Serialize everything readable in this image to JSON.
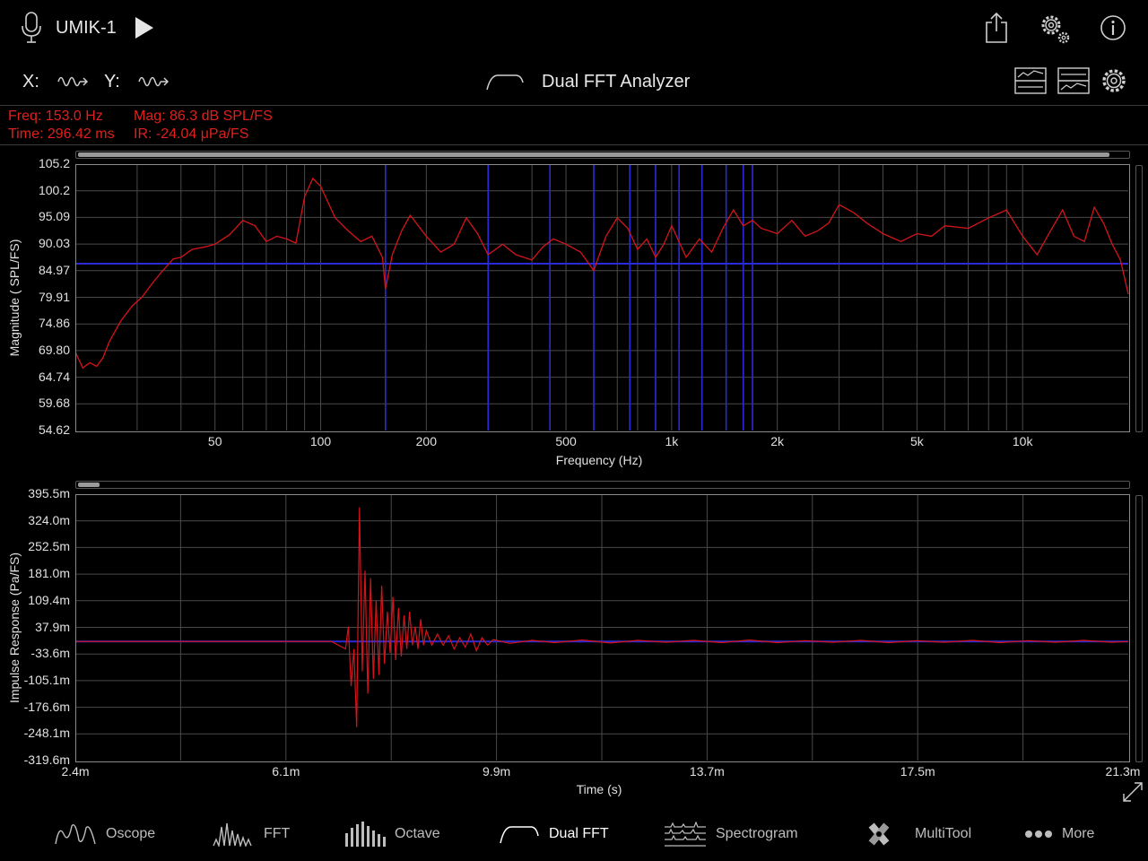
{
  "header": {
    "device": "UMIK-1",
    "x_label": "X:",
    "y_label": "Y:",
    "title": "Dual FFT Analyzer"
  },
  "readout": {
    "freq": "Freq: 153.0 Hz",
    "mag": "Mag: 86.3 dB SPL/FS",
    "time": "Time: 296.42 ms",
    "ir": "IR: -24.04 μPa/FS"
  },
  "fft_plot": {
    "ylabel": "Magnitude ( SPL/FS)",
    "xlabel": "Frequency (Hz)",
    "yticks": [
      "105.2",
      "100.2",
      "95.09",
      "90.03",
      "84.97",
      "79.91",
      "74.86",
      "69.80",
      "64.74",
      "59.68",
      "54.62"
    ],
    "xticks": [
      "50",
      "100",
      "200",
      "500",
      "1k",
      "2k",
      "5k",
      "10k"
    ],
    "xtick_values": [
      50,
      100,
      200,
      500,
      1000,
      2000,
      5000,
      10000
    ]
  },
  "ir_plot": {
    "ylabel": "Impulse Response (Pa/FS)",
    "xlabel": "Time (s)",
    "yticks": [
      "395.5m",
      "324.0m",
      "252.5m",
      "181.0m",
      "109.4m",
      "37.9m",
      "-33.6m",
      "-105.1m",
      "-176.6m",
      "-248.1m",
      "-319.6m"
    ],
    "xticks": [
      "2.4m",
      "6.1m",
      "9.9m",
      "13.7m",
      "17.5m",
      "21.3m"
    ]
  },
  "tabs": [
    {
      "label": "Oscope",
      "icon": "oscope-icon"
    },
    {
      "label": "FFT",
      "icon": "fft-icon"
    },
    {
      "label": "Octave",
      "icon": "octave-icon"
    },
    {
      "label": "Dual FFT",
      "icon": "dual-fft-icon"
    },
    {
      "label": "Spectrogram",
      "icon": "spectrogram-icon"
    },
    {
      "label": "MultiTool",
      "icon": "multitool-icon"
    },
    {
      "label": "More",
      "icon": "more-icon"
    }
  ],
  "colors": {
    "trace": "#d4141a",
    "reference": "#2a2ad6",
    "readout": "#e0201c",
    "grid": "#4a4a4a"
  },
  "chart_data": [
    {
      "type": "line",
      "x_scale": "log",
      "xlim": [
        20,
        20000
      ],
      "ylim": [
        54.62,
        105.2
      ],
      "reference_level": 86.3,
      "marker_frequencies": [
        153,
        300,
        450,
        600,
        760,
        900,
        1050,
        1220,
        1430,
        1600,
        1700
      ],
      "series": [
        {
          "x": [
            20,
            21,
            22,
            23,
            24,
            25,
            27,
            29,
            31,
            33,
            35,
            38,
            40,
            43,
            47,
            50,
            55,
            60,
            65,
            70,
            75,
            80,
            85,
            90,
            95,
            100,
            110,
            120,
            130,
            140,
            150,
            153,
            160,
            170,
            180,
            200,
            220,
            240,
            260,
            280,
            300,
            330,
            360,
            400,
            430,
            460,
            500,
            550,
            600,
            650,
            700,
            750,
            800,
            850,
            900,
            950,
            1000,
            1100,
            1200,
            1300,
            1400,
            1500,
            1600,
            1700,
            1800,
            2000,
            2200,
            2400,
            2600,
            2800,
            3000,
            3300,
            3600,
            4000,
            4500,
            5000,
            5500,
            6000,
            7000,
            8000,
            9000,
            10000,
            11000,
            12000,
            13000,
            14000,
            15000,
            16000,
            17000,
            18000,
            19000,
            20000
          ],
          "y": [
            69.5,
            66.5,
            67.5,
            66.8,
            68.5,
            71.5,
            75.5,
            78.2,
            80.0,
            82.4,
            84.5,
            87.2,
            87.5,
            89.0,
            89.5,
            90.0,
            91.8,
            94.5,
            93.5,
            90.5,
            91.5,
            91.0,
            90.2,
            99.0,
            102.5,
            101.0,
            95.0,
            92.5,
            90.5,
            91.5,
            87.5,
            81.5,
            88.0,
            92.5,
            95.5,
            91.5,
            88.5,
            90.0,
            95.0,
            92.0,
            88.0,
            90.0,
            88.0,
            87.0,
            89.5,
            91.0,
            90.0,
            88.5,
            85.0,
            91.5,
            95.0,
            93.0,
            89.0,
            91.0,
            87.5,
            90.0,
            93.5,
            87.5,
            91.0,
            88.5,
            93.0,
            96.5,
            93.5,
            94.5,
            93.0,
            92.0,
            94.5,
            91.5,
            92.5,
            94.0,
            97.5,
            96.0,
            94.0,
            92.0,
            90.5,
            92.0,
            91.5,
            93.5,
            93.0,
            95.0,
            96.5,
            91.5,
            88.0,
            92.5,
            96.5,
            91.5,
            90.5,
            97.0,
            94.0,
            90.0,
            87.0,
            80.5
          ]
        }
      ]
    },
    {
      "type": "line",
      "xlim": [
        2.4,
        21.3
      ],
      "ylim": [
        -319.6,
        395.5
      ],
      "reference_level": 0,
      "x_unit": "ms",
      "y_unit": "mPa/FS",
      "series": [
        {
          "x": [
            2.4,
            6.5,
            7.0,
            7.25,
            7.3,
            7.35,
            7.4,
            7.45,
            7.5,
            7.55,
            7.6,
            7.65,
            7.7,
            7.75,
            7.8,
            7.85,
            7.9,
            7.95,
            8.0,
            8.05,
            8.1,
            8.15,
            8.2,
            8.25,
            8.3,
            8.35,
            8.4,
            8.45,
            8.5,
            8.55,
            8.6,
            8.65,
            8.7,
            8.8,
            8.9,
            9.0,
            9.1,
            9.2,
            9.3,
            9.4,
            9.5,
            9.6,
            9.7,
            9.8,
            9.9,
            10.2,
            10.6,
            11.0,
            11.5,
            12.0,
            12.5,
            13.0,
            13.5,
            14.0,
            14.5,
            15.0,
            15.5,
            16.0,
            16.5,
            17.0,
            17.5,
            18.0,
            18.5,
            19.0,
            19.5,
            20.0,
            20.5,
            21.0,
            21.3
          ],
          "y": [
            0,
            0,
            0,
            -20,
            40,
            -120,
            -20,
            -230,
            360,
            -80,
            190,
            -140,
            170,
            -100,
            110,
            -90,
            150,
            -60,
            80,
            -30,
            120,
            -50,
            90,
            -40,
            70,
            -20,
            80,
            -10,
            40,
            -20,
            60,
            -10,
            30,
            -10,
            20,
            -10,
            15,
            -20,
            10,
            -15,
            20,
            -25,
            10,
            -10,
            5,
            -5,
            3,
            -3,
            4,
            -4,
            3,
            -2,
            3,
            -3,
            4,
            -3,
            2,
            -2,
            3,
            -3,
            2,
            -2,
            3,
            -3,
            2,
            -2,
            3,
            -2,
            0
          ]
        }
      ]
    }
  ]
}
